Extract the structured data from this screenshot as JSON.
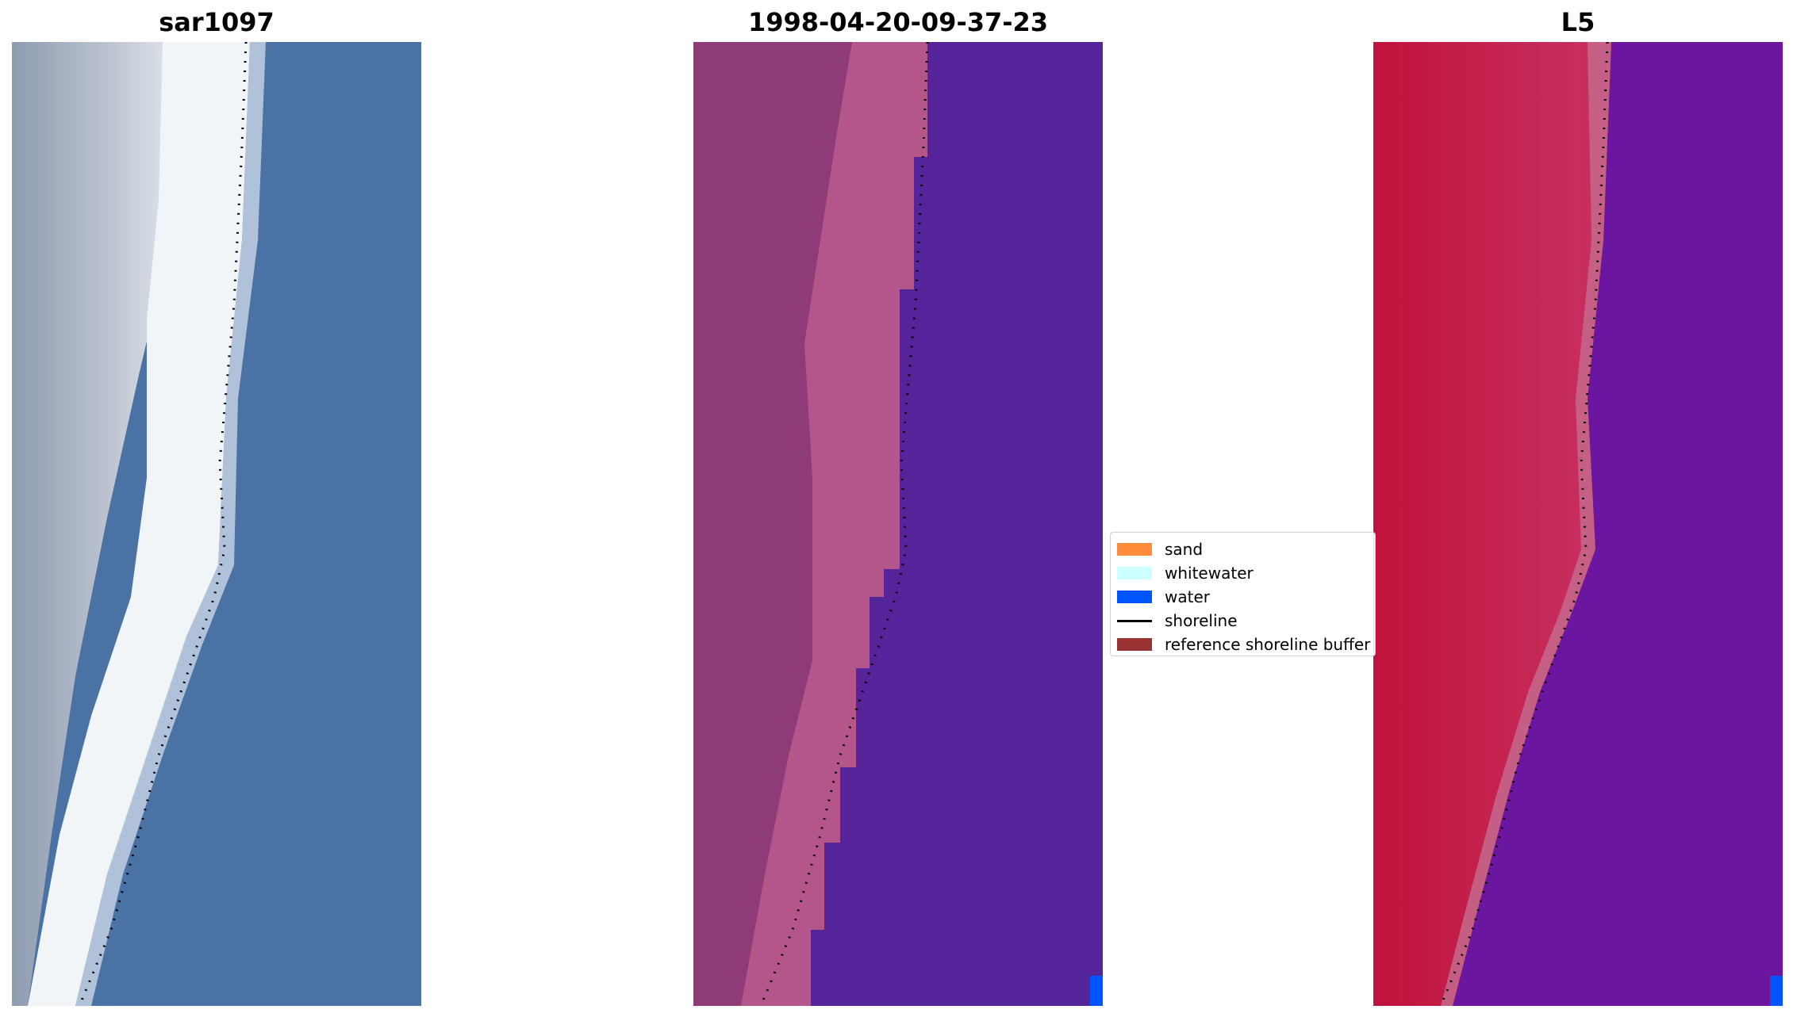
{
  "panels": [
    {
      "title": "sar1097"
    },
    {
      "title": "1998-04-20-09-37-23"
    },
    {
      "title": "L5"
    }
  ],
  "legend": {
    "items": [
      {
        "label": "sand",
        "color": "#ff8c3a",
        "kind": "patch"
      },
      {
        "label": "whitewater",
        "color": "#ccffff",
        "kind": "patch"
      },
      {
        "label": "water",
        "color": "#0055ff",
        "kind": "patch"
      },
      {
        "label": "shoreline",
        "color": "#000000",
        "kind": "line"
      },
      {
        "label": "reference shoreline buffer",
        "color": "#993333",
        "kind": "patch"
      }
    ]
  },
  "colors": {
    "rgb_water": "#4a72a4",
    "rgb_foam": "#f2f5f8",
    "rgb_land": "#9aa6b8",
    "class_water": "#55249a",
    "class_land_dark": "#8f3b78",
    "class_land_light": "#b85a8e",
    "index_land": "#c41440",
    "index_water": "#6a16a0",
    "water_patch": "#0055ff"
  }
}
